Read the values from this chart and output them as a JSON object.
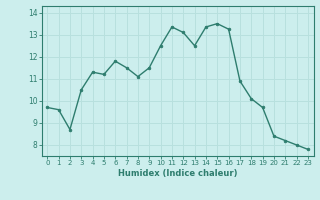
{
  "x": [
    0,
    1,
    2,
    3,
    4,
    5,
    6,
    7,
    8,
    9,
    10,
    11,
    12,
    13,
    14,
    15,
    16,
    17,
    18,
    19,
    20,
    21,
    22,
    23
  ],
  "y": [
    9.7,
    9.6,
    8.7,
    10.5,
    11.3,
    11.2,
    11.8,
    11.5,
    11.1,
    11.5,
    12.5,
    13.35,
    13.1,
    12.5,
    13.35,
    13.5,
    13.25,
    10.9,
    10.1,
    9.7,
    8.4,
    8.2,
    8.0,
    7.8
  ],
  "line_color": "#2e7d6e",
  "marker_color": "#2e7d6e",
  "bg_color": "#cceeed",
  "grid_color": "#b8e0de",
  "axis_color": "#2e7d6e",
  "xlabel": "Humidex (Indice chaleur)",
  "ylim": [
    7.5,
    14.3
  ],
  "xlim": [
    -0.5,
    23.5
  ],
  "yticks": [
    8,
    9,
    10,
    11,
    12,
    13,
    14
  ],
  "xticks": [
    0,
    1,
    2,
    3,
    4,
    5,
    6,
    7,
    8,
    9,
    10,
    11,
    12,
    13,
    14,
    15,
    16,
    17,
    18,
    19,
    20,
    21,
    22,
    23
  ]
}
